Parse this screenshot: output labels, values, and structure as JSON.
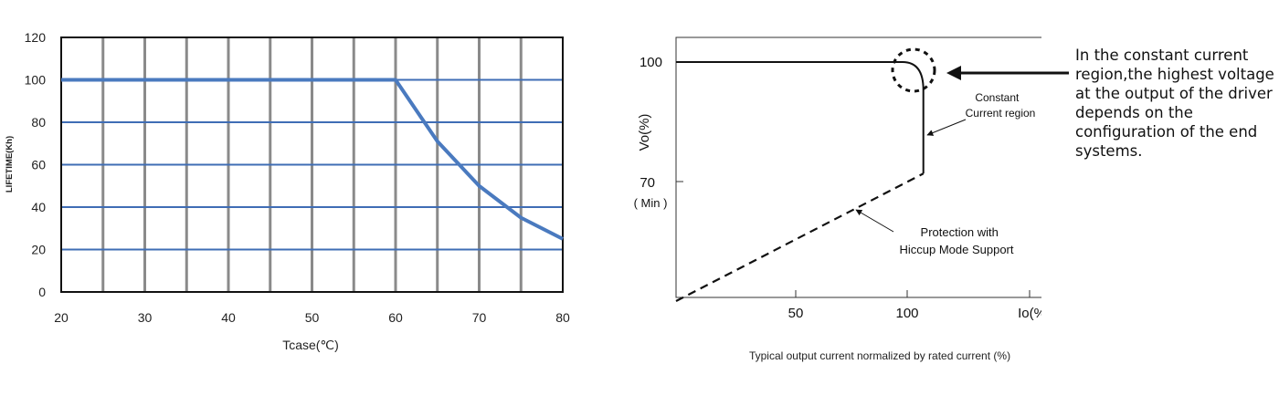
{
  "chart_data": [
    {
      "type": "line",
      "title": "",
      "xlabel": "Tcase(℃)",
      "ylabel": "LIFETIME(Kh)",
      "xlim": [
        20,
        80
      ],
      "ylim": [
        0,
        120
      ],
      "x_ticks": [
        "20",
        "30",
        "40",
        "50",
        "60",
        "70",
        "80"
      ],
      "y_ticks": [
        "0",
        "20",
        "40",
        "60",
        "80",
        "100",
        "120"
      ],
      "grid": true,
      "line_color": "#4a7abf",
      "series": [
        {
          "x": [
            20,
            25,
            30,
            35,
            40,
            45,
            50,
            55,
            60,
            65,
            70,
            75,
            80
          ],
          "y": [
            100,
            100,
            100,
            100,
            100,
            100,
            100,
            100,
            100,
            71,
            50,
            35,
            25
          ]
        }
      ]
    },
    {
      "type": "line",
      "title": "",
      "xlabel": "Typical output current normalized by rated current (%)",
      "ylabel": "Vo(%)",
      "x_axis_unit_label": "Io(%)",
      "x_ticks": [
        "50",
        "100"
      ],
      "y_ticks": [
        "100",
        "70"
      ],
      "y_tick_note": "( Min )",
      "grid": false,
      "series": [
        {
          "style": "solid",
          "x": [
            0,
            98,
            100,
            107,
            107
          ],
          "y": [
            100,
            100,
            100,
            93,
            72
          ]
        },
        {
          "style": "dashed",
          "x": [
            0,
            107
          ],
          "y": [
            40,
            72
          ]
        }
      ],
      "annotations": [
        {
          "text_lines": [
            "Constant",
            "Current region"
          ]
        },
        {
          "text_lines": [
            "Protection with",
            "Hiccup Mode Support"
          ]
        }
      ]
    }
  ],
  "side_note": {
    "text": "In the constant current region,the highest voltage at the output of the driver depends on the configuration of the end systems."
  }
}
